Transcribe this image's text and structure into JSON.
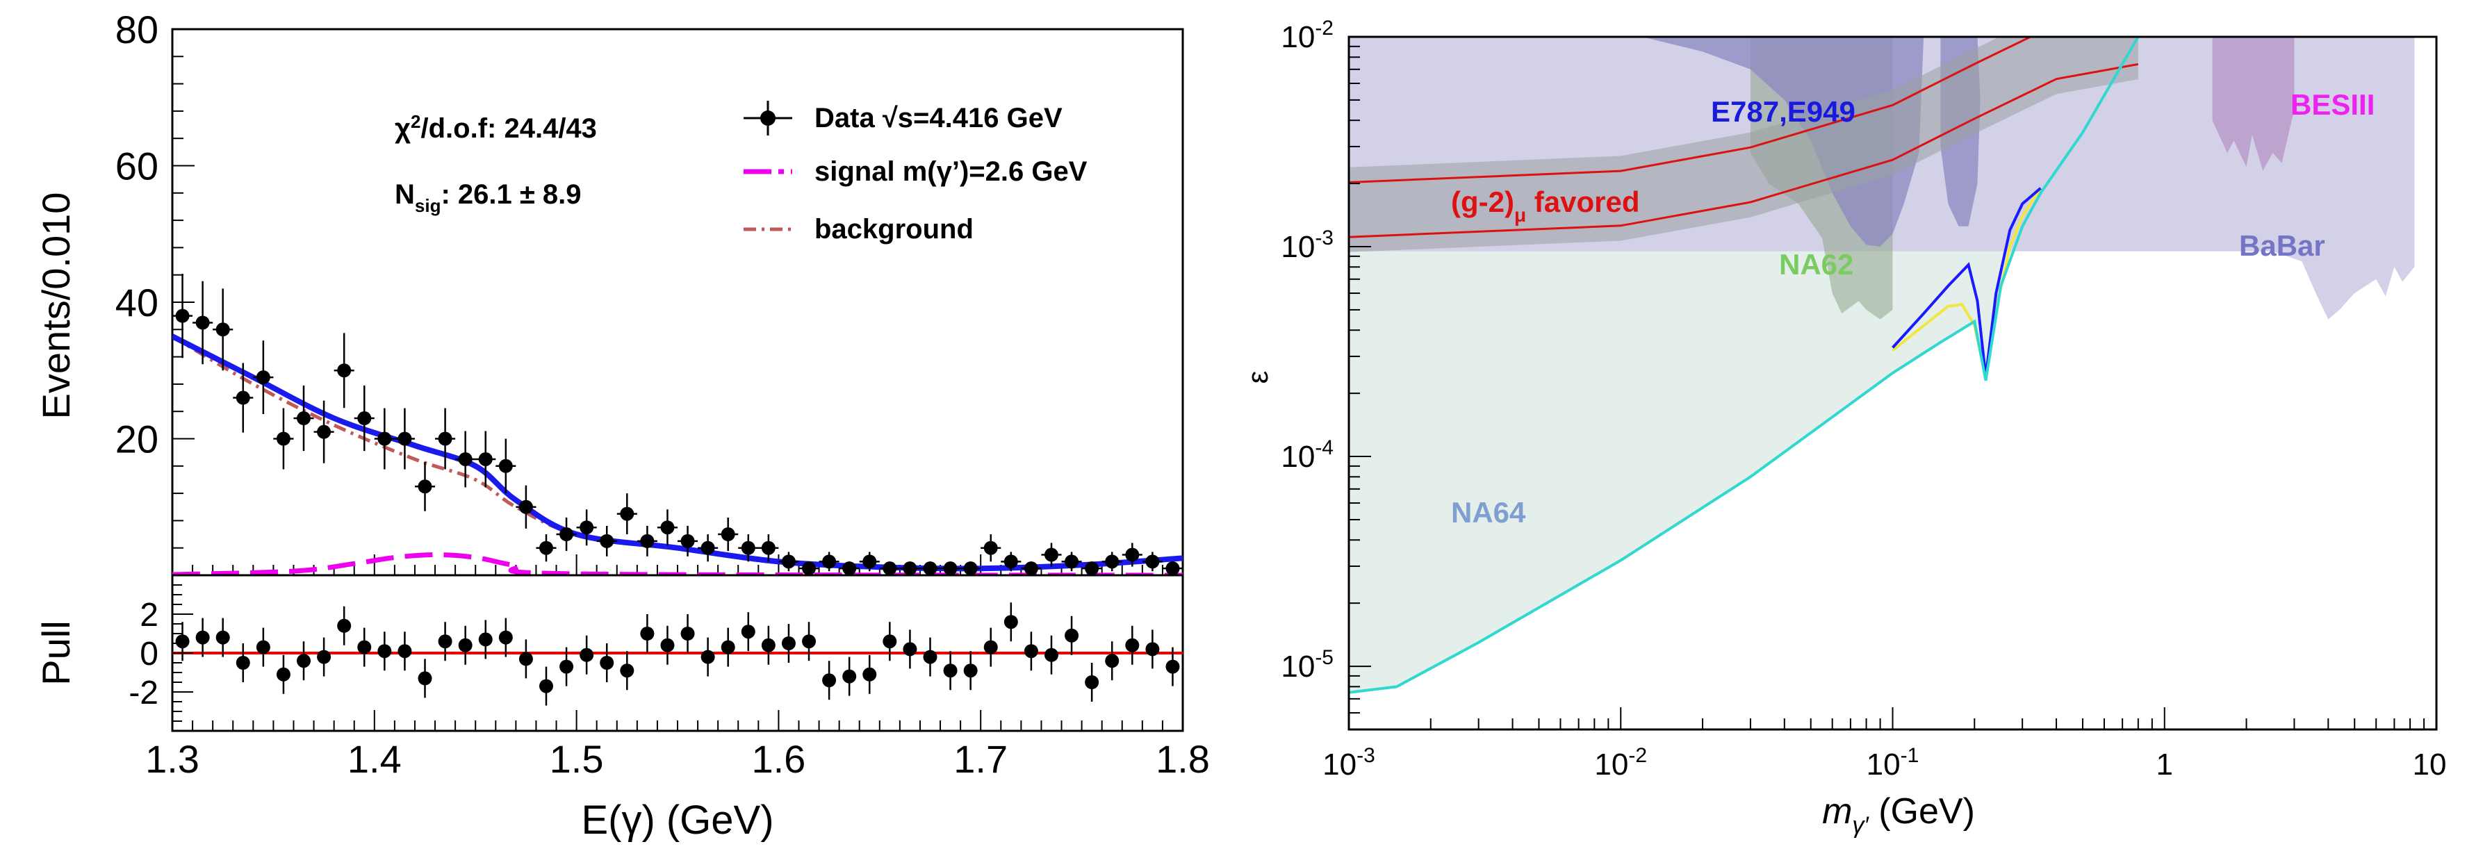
{
  "chart_data": [
    {
      "type": "scatter",
      "panel": "fit",
      "xlim": [
        1.3,
        1.8
      ],
      "ylim": [
        0,
        80
      ],
      "ylabel": "Events/0.010",
      "y_ticks": [
        20,
        40,
        60,
        80
      ],
      "annotations": {
        "chi2_prefix": "χ",
        "chi2_sup": "2",
        "chi2_rest": "/d.o.f: 24.4/43",
        "nsig_prefix": "N",
        "nsig_sub": "sig",
        "nsig_rest": ": 26.1 ± 8.9"
      },
      "legend": {
        "data": "Data  √s=4.416 GeV",
        "signal": "signal m(γ’)=2.6 GeV",
        "background": "background"
      },
      "colors": {
        "fit": "#1a1aee",
        "signal": "#ee00ee",
        "background": "#c05a5a",
        "data": "#000000"
      },
      "series": [
        {
          "name": "Data  √s=4.416 GeV",
          "x": [
            1.305,
            1.315,
            1.325,
            1.335,
            1.345,
            1.355,
            1.365,
            1.375,
            1.385,
            1.395,
            1.405,
            1.415,
            1.425,
            1.435,
            1.445,
            1.455,
            1.465,
            1.475,
            1.485,
            1.495,
            1.505,
            1.515,
            1.525,
            1.535,
            1.545,
            1.555,
            1.565,
            1.575,
            1.585,
            1.595,
            1.605,
            1.615,
            1.625,
            1.635,
            1.645,
            1.655,
            1.665,
            1.675,
            1.685,
            1.695,
            1.705,
            1.715,
            1.725,
            1.735,
            1.745,
            1.755,
            1.765,
            1.775,
            1.785,
            1.795
          ],
          "y": [
            38,
            37,
            36,
            26,
            29,
            20,
            23,
            21,
            30,
            23,
            20,
            20,
            13,
            20,
            17,
            17,
            16,
            10,
            4,
            6,
            7,
            5,
            9,
            5,
            7,
            5,
            4,
            6,
            4,
            4,
            2,
            1,
            2,
            1,
            2,
            1,
            1,
            1,
            1,
            1,
            4,
            2,
            1,
            3,
            2,
            1,
            2,
            3,
            2,
            1
          ]
        },
        {
          "name": "fit",
          "x": [
            1.3,
            1.34,
            1.38,
            1.42,
            1.45,
            1.47,
            1.5,
            1.55,
            1.6,
            1.65,
            1.7,
            1.75,
            1.8
          ],
          "y": [
            35,
            29,
            23,
            19,
            16,
            11,
            6,
            4,
            2,
            1.2,
            1,
            1.5,
            2.5
          ]
        },
        {
          "name": "background",
          "x": [
            1.3,
            1.34,
            1.38,
            1.42,
            1.45,
            1.47,
            1.5,
            1.55,
            1.6,
            1.65,
            1.7,
            1.75,
            1.8
          ],
          "y": [
            35,
            28,
            22,
            17,
            14,
            10,
            6,
            4,
            2,
            1.2,
            1,
            1.5,
            2.5
          ]
        },
        {
          "name": "signal m(γ’)=2.6 GeV",
          "x": [
            1.3,
            1.36,
            1.39,
            1.41,
            1.43,
            1.45,
            1.47,
            1.5,
            1.8
          ],
          "y": [
            0.1,
            0.6,
            1.7,
            2.6,
            3.0,
            2.6,
            1.4,
            0.2,
            0
          ]
        }
      ]
    },
    {
      "type": "scatter",
      "panel": "pull",
      "xlim": [
        1.3,
        1.8
      ],
      "ylim": [
        -4,
        4
      ],
      "ylabel": "Pull",
      "xlabel": "E(γ) (GeV)",
      "y_tick_labels": [
        "2",
        "0",
        "-2"
      ],
      "x_tick_labels": [
        "1.3",
        "1.4",
        "1.5",
        "1.6",
        "1.7",
        "1.8"
      ],
      "zero_line_color": "#ee0000",
      "series": [
        {
          "name": "pull",
          "x": [
            1.305,
            1.315,
            1.325,
            1.335,
            1.345,
            1.355,
            1.365,
            1.375,
            1.385,
            1.395,
            1.405,
            1.415,
            1.425,
            1.435,
            1.445,
            1.455,
            1.465,
            1.475,
            1.485,
            1.495,
            1.505,
            1.515,
            1.525,
            1.535,
            1.545,
            1.555,
            1.565,
            1.575,
            1.585,
            1.595,
            1.605,
            1.615,
            1.625,
            1.635,
            1.645,
            1.655,
            1.665,
            1.675,
            1.685,
            1.695,
            1.705,
            1.715,
            1.725,
            1.735,
            1.745,
            1.755,
            1.765,
            1.775,
            1.785,
            1.795
          ],
          "y": [
            0.6,
            0.8,
            0.8,
            -0.5,
            0.3,
            -1.1,
            -0.4,
            -0.2,
            1.4,
            0.3,
            0.1,
            0.1,
            -1.3,
            0.6,
            0.4,
            0.7,
            0.8,
            -0.3,
            -1.7,
            -0.7,
            -0.1,
            -0.5,
            -0.9,
            1.0,
            0.4,
            1.0,
            -0.2,
            0.3,
            1.1,
            0.4,
            0.5,
            0.6,
            -1.4,
            -1.2,
            -1.1,
            0.6,
            0.2,
            -0.2,
            -0.9,
            -0.9,
            0.3,
            1.6,
            0.1,
            -0.1,
            0.9,
            -1.5,
            -0.4,
            0.4,
            0.2,
            -0.7
          ]
        }
      ]
    },
    {
      "type": "area",
      "panel": "exclusion",
      "xscale": "log",
      "yscale": "log",
      "xlim": [
        0.001,
        10
      ],
      "ylim": [
        5e-06,
        0.01
      ],
      "xlabel_main": "m",
      "xlabel_sub": "γ′",
      "xlabel_rest": " (GeV)",
      "ylabel": "ε",
      "x_ticks": [
        {
          "value": 0.001,
          "base": "10",
          "exp": "-3"
        },
        {
          "value": 0.01,
          "base": "10",
          "exp": "-2"
        },
        {
          "value": 0.1,
          "base": "10",
          "exp": "-1"
        },
        {
          "value": 1,
          "base": "1",
          "exp": ""
        },
        {
          "value": 10,
          "base": "10",
          "exp": ""
        }
      ],
      "y_ticks": [
        {
          "value": 1e-05,
          "base": "10",
          "exp": "-5"
        },
        {
          "value": 0.0001,
          "base": "10",
          "exp": "-4"
        },
        {
          "value": 0.001,
          "base": "10",
          "exp": "-3"
        },
        {
          "value": 0.01,
          "base": "10",
          "exp": "-2"
        }
      ],
      "region_labels": {
        "e787": "E787,E949",
        "besiii": "BESIII",
        "g2_main": "(g-2)",
        "g2_sub": "μ",
        "g2_rest": " favored",
        "na62": "NA62",
        "babar": "BaBar",
        "na64": "NA64"
      },
      "colors": {
        "na64_fill": "#e4efec",
        "babar_fill": "#d3d1e8",
        "e787": "#1a1add",
        "besiii": "#ee22ee",
        "g2": "#dd1111",
        "na62": "#7acb62",
        "babar": "#7575c8",
        "na64": "#7f9fd0",
        "boundary": "#30d8d0",
        "limit_blue": "#1a1aff",
        "limit_yellow": "#f2e640"
      },
      "series": [
        {
          "name": "NA64",
          "x": [
            0.001,
            0.0015,
            0.003,
            0.01,
            0.03,
            0.1,
            0.15,
            0.2,
            0.22,
            0.25,
            0.3,
            0.35,
            0.5,
            0.8
          ],
          "y": [
            7.5e-06,
            8e-06,
            1.3e-05,
            3.2e-05,
            8e-05,
            0.00025,
            0.00035,
            0.00044,
            0.00023,
            0.00065,
            0.00125,
            0.0018,
            0.0035,
            0.01
          ]
        },
        {
          "name": "BaBar",
          "x": [
            0.001,
            1,
            2,
            3,
            4,
            5,
            6,
            7,
            8,
            8.5
          ],
          "y": [
            0.00095,
            0.00095,
            0.00095,
            0.00095,
            0.0006,
            0.00045,
            0.0005,
            0.0007,
            0.0006,
            0.0008
          ]
        },
        {
          "name": "NA62",
          "x": [
            0.03,
            0.04,
            0.05,
            0.06,
            0.07,
            0.08,
            0.09,
            0.1
          ],
          "y": [
            0.0028,
            0.0015,
            0.0012,
            0.0008,
            0.00055,
            0.0005,
            0.00045,
            0.0005
          ]
        },
        {
          "name": "E787,E949",
          "x": [
            0.01,
            0.03,
            0.06,
            0.1,
            0.13
          ],
          "y": [
            0.01,
            0.0065,
            0.0018,
            0.001,
            0.0018
          ]
        },
        {
          "name": "BESIII",
          "x": [
            1.5,
            2,
            2.5,
            3
          ],
          "y": [
            0.01,
            0.0035,
            0.0025,
            0.004
          ]
        },
        {
          "name": "(g-2)μ favored",
          "x": [
            0.001,
            0.01,
            0.03,
            0.1,
            0.2,
            0.4,
            0.8
          ],
          "y": [
            0.0015,
            0.0017,
            0.0022,
            0.0035,
            0.0055,
            0.0085,
            0.01
          ]
        }
      ]
    }
  ]
}
